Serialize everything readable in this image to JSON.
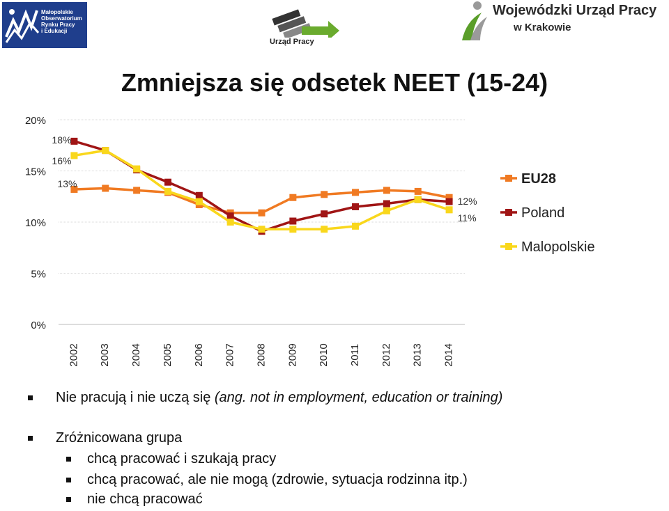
{
  "header": {
    "logo_left_text": [
      "Małopolskie",
      "Obserwatorium",
      "Rynku Pracy",
      "i Edukacji"
    ],
    "logo_mid_text": "Urząd Pracy",
    "logo_right_line1": "Wojewódzki Urząd Pracy",
    "logo_right_line2": "w Krakowie"
  },
  "slide": {
    "title": "Zmniejsza się odsetek NEET (15-24)"
  },
  "chart_data": {
    "type": "line",
    "categories": [
      "2002",
      "2003",
      "2004",
      "2005",
      "2006",
      "2007",
      "2008",
      "2009",
      "2010",
      "2011",
      "2012",
      "2013",
      "2014"
    ],
    "ylim": [
      0,
      20
    ],
    "yticks": [
      "0%",
      "5%",
      "10%",
      "15%",
      "20%"
    ],
    "grid": true,
    "legend_position": "right",
    "series": [
      {
        "name": "EU28",
        "color": "#f07a22",
        "marker": "square",
        "values": [
          13.2,
          13.3,
          13.1,
          12.9,
          11.7,
          10.9,
          10.9,
          12.4,
          12.7,
          12.9,
          13.1,
          13.0,
          12.4
        ]
      },
      {
        "name": "Poland",
        "color": "#a01515",
        "marker": "square",
        "values": [
          17.9,
          17.0,
          15.1,
          13.9,
          12.6,
          10.6,
          9.1,
          10.1,
          10.8,
          11.5,
          11.8,
          12.2,
          12.0
        ]
      },
      {
        "name": "Malopolskie",
        "color": "#f9d71c",
        "marker": "square",
        "values": [
          16.5,
          17.0,
          15.2,
          13.0,
          12.0,
          10.0,
          9.3,
          9.3,
          9.3,
          9.6,
          11.1,
          12.2,
          11.2
        ]
      }
    ],
    "annotations": [
      {
        "text": "18%",
        "x": "2002",
        "y": 18
      },
      {
        "text": "16%",
        "x": "2002",
        "y": 16
      },
      {
        "text": "13%",
        "x": "2002",
        "y": 13
      },
      {
        "text": "12%",
        "x": "2014",
        "y": 12
      },
      {
        "text": "11%",
        "x": "2014",
        "y": 11
      }
    ]
  },
  "bullets": {
    "item1_main": "Nie pracują i nie uczą się ",
    "item1_italic": "(ang. not in employment, education or training)",
    "item2": "Zróżnicowana grupa",
    "sub1": "chcą pracować i szukają pracy",
    "sub2": "chcą pracować, ale nie mogą (zdrowie, sytuacja rodzinna itp.)",
    "sub3": "nie chcą pracować"
  }
}
